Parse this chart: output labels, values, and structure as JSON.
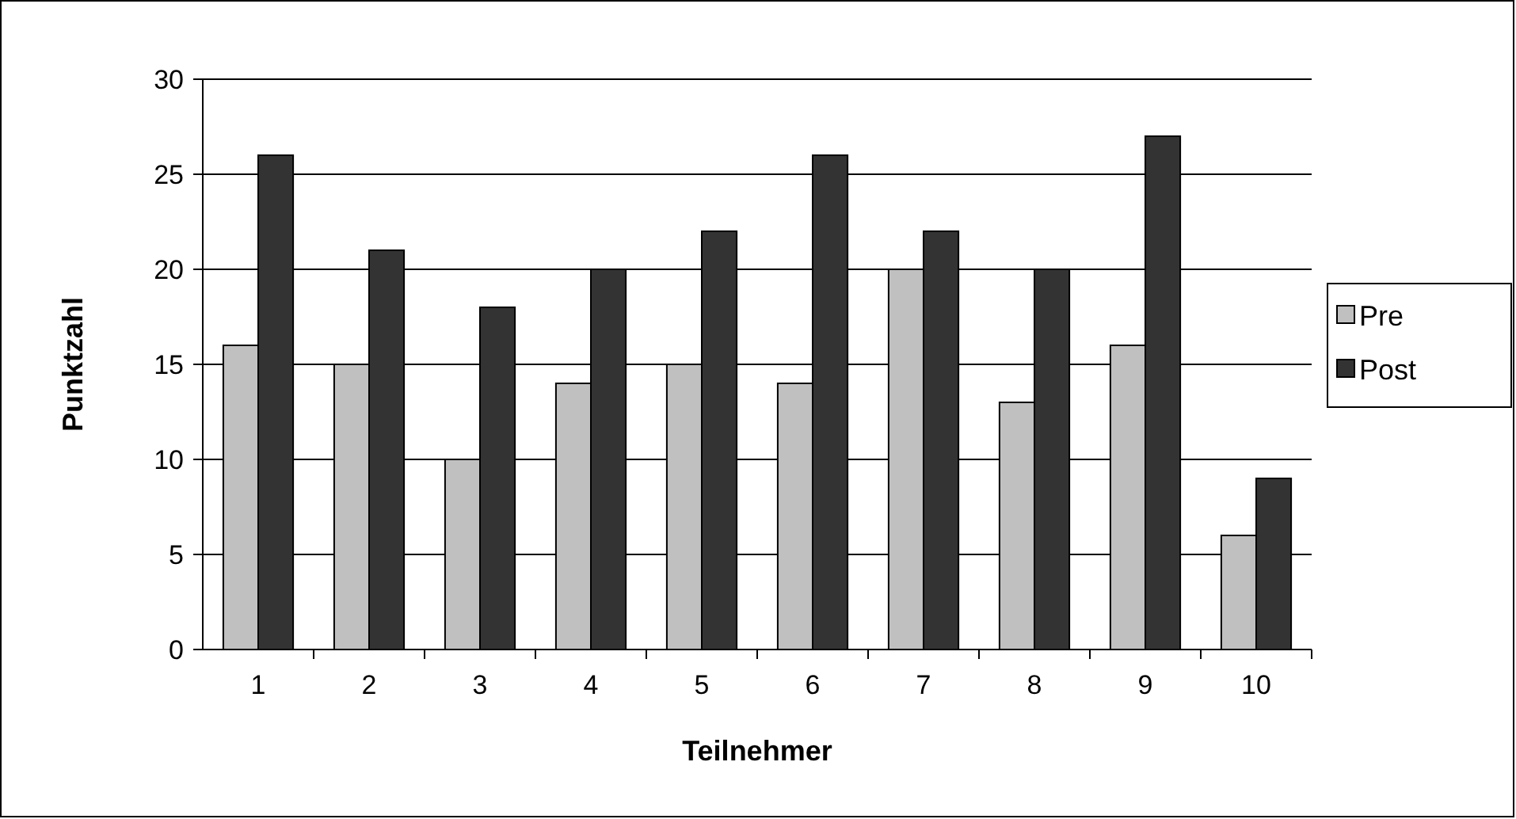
{
  "chart_data": {
    "type": "bar",
    "xlabel": "Teilnehmer",
    "ylabel": "Punktzahl",
    "categories": [
      "1",
      "2",
      "3",
      "4",
      "5",
      "6",
      "7",
      "8",
      "9",
      "10"
    ],
    "series": [
      {
        "name": "Pre",
        "color": "#c0c0c0",
        "values": [
          16,
          15,
          10,
          14,
          15,
          14,
          20,
          13,
          16,
          6
        ]
      },
      {
        "name": "Post",
        "color": "#333333",
        "values": [
          26,
          21,
          18,
          20,
          22,
          26,
          22,
          20,
          27,
          9
        ]
      }
    ],
    "ylim": [
      0,
      30
    ],
    "yticks": [
      0,
      5,
      10,
      15,
      20,
      25,
      30
    ],
    "grid": "y",
    "legend": "right"
  }
}
